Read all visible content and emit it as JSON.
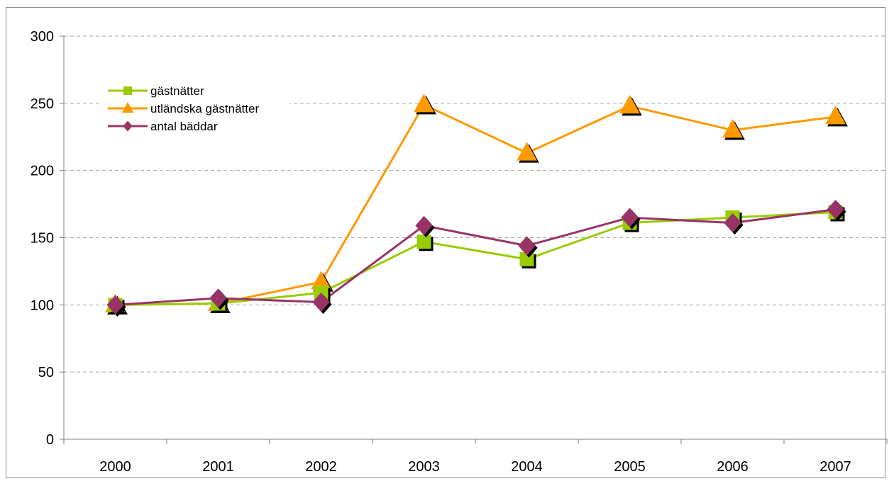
{
  "chart_data": {
    "type": "line",
    "categories": [
      "2000",
      "2001",
      "2002",
      "2003",
      "2004",
      "2005",
      "2006",
      "2007"
    ],
    "ylim": [
      0,
      300
    ],
    "yticks": [
      0,
      50,
      100,
      150,
      200,
      250,
      300
    ],
    "grid": true,
    "legend_position": "top-left",
    "series": [
      {
        "name": "gästnätter",
        "color": "#99cc00",
        "marker": "square",
        "values": [
          100,
          101,
          109,
          147,
          134,
          161,
          165,
          169
        ]
      },
      {
        "name": "utländska gästnätter",
        "color": "#ff9900",
        "marker": "triangle",
        "values": [
          100,
          101,
          117,
          249,
          213,
          248,
          230,
          240
        ]
      },
      {
        "name": "antal bäddar",
        "color": "#993366",
        "marker": "diamond",
        "values": [
          100,
          105,
          102,
          159,
          144,
          165,
          161,
          171
        ]
      }
    ]
  }
}
